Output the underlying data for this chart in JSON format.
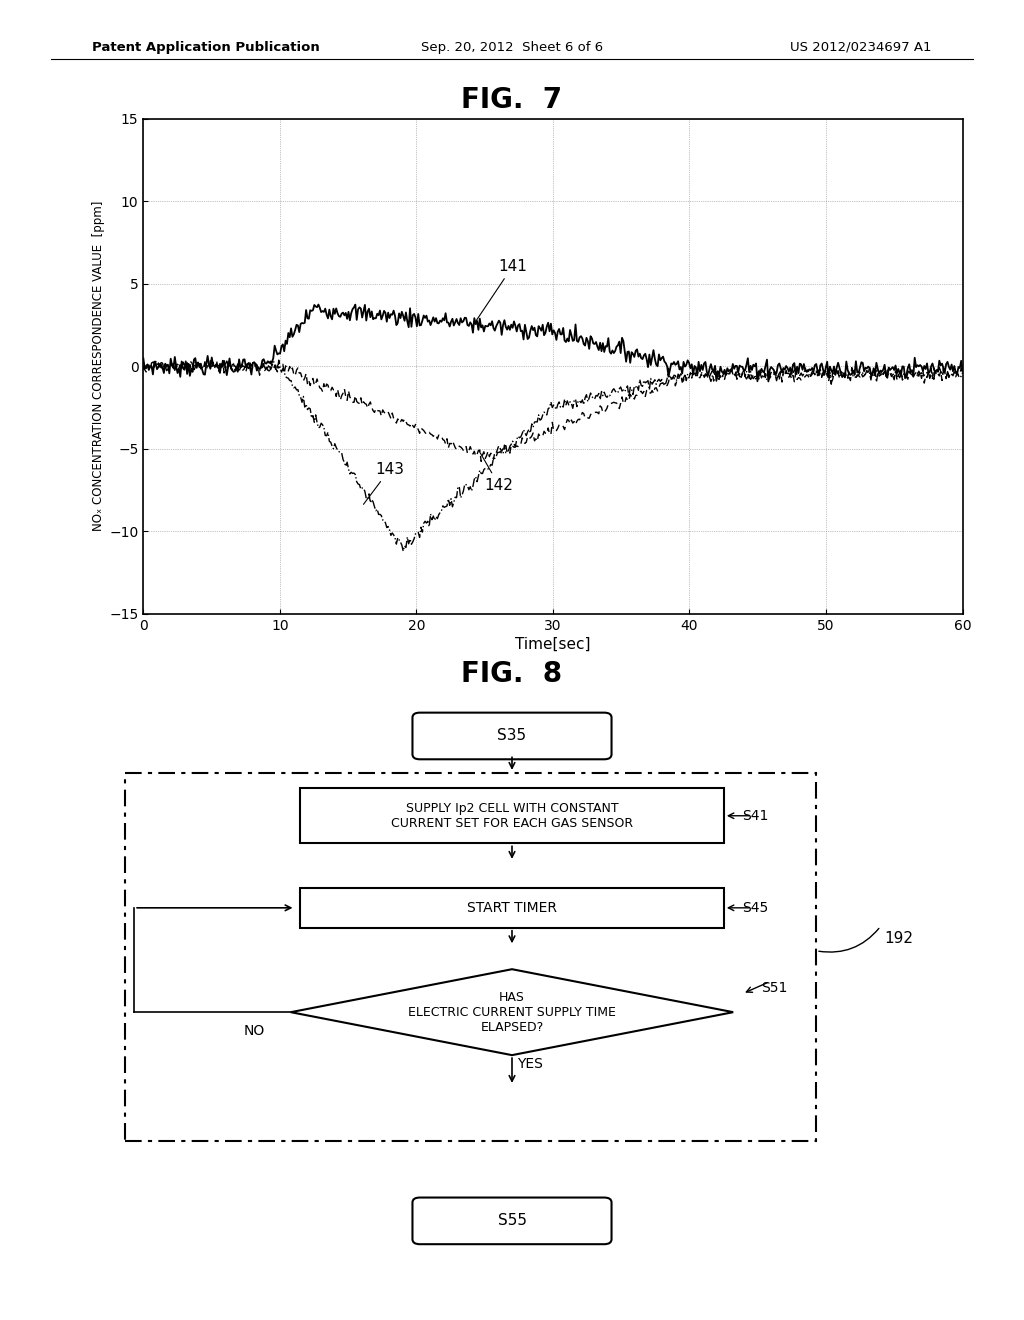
{
  "page_header_left": "Patent Application Publication",
  "page_header_mid": "Sep. 20, 2012  Sheet 6 of 6",
  "page_header_right": "US 2012/0234697 A1",
  "fig7_title": "FIG.  7",
  "fig8_title": "FIG.  8",
  "xlabel": "Time[sec]",
  "ylabel": "NOₓ CONCENTRATION CORRESPONDENCE VALUE  [ppm]",
  "xlim": [
    0,
    60
  ],
  "ylim": [
    -15,
    15
  ],
  "xticks": [
    0,
    10,
    20,
    30,
    40,
    50,
    60
  ],
  "yticks": [
    -15,
    -10,
    -5,
    0,
    5,
    10,
    15
  ],
  "label_141": "141",
  "label_142": "142",
  "label_143": "143",
  "flowchart": {
    "s35": "S35",
    "s41_text": "SUPPLY Ip2 CELL WITH CONSTANT\nCURRENT SET FOR EACH GAS SENSOR",
    "s41_label": "S41",
    "s45_text": "START TIMER",
    "s45_label": "S45",
    "s51_text": "HAS\nELECTRIC CURRENT SUPPLY TIME\nELAPSED?",
    "s51_label": "S51",
    "no_label": "NO",
    "yes_label": "YES",
    "s55": "S55",
    "box192": "192"
  }
}
